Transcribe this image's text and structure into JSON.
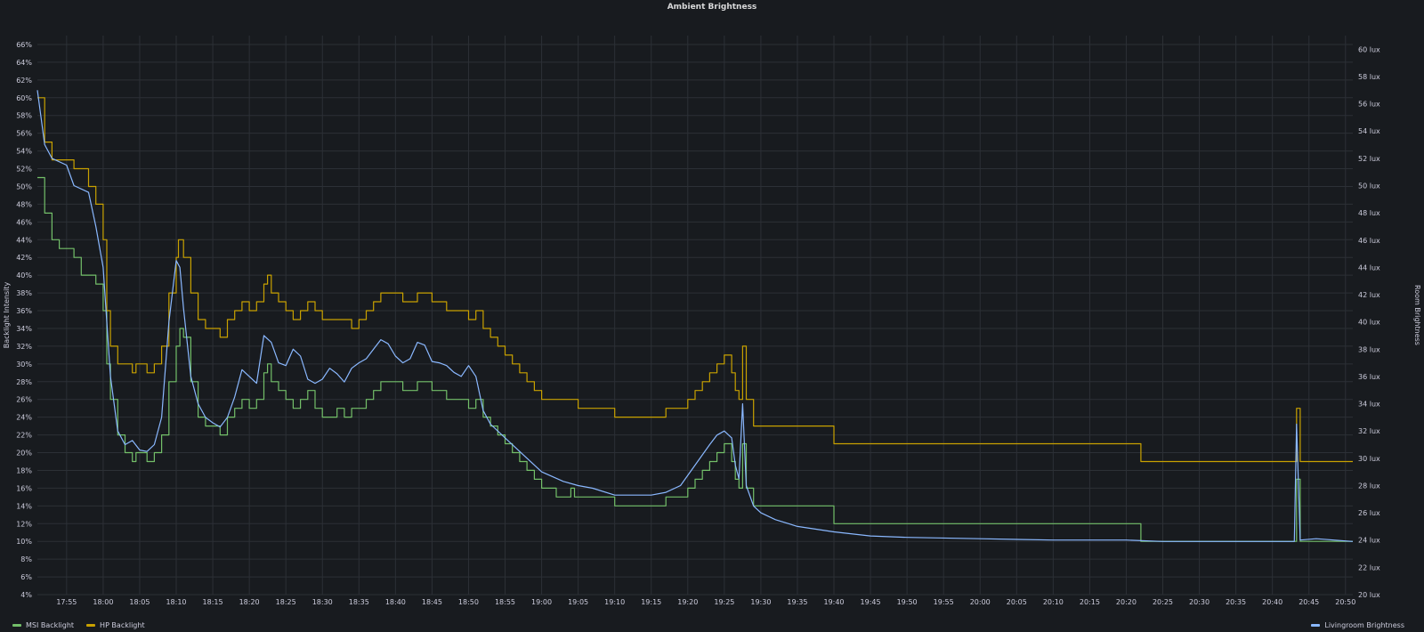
{
  "panel": {
    "title": "Ambient Brightness"
  },
  "legend": {
    "msi": "MSI Backlight",
    "hp": "HP Backlight",
    "room": "Livingroom Brightness"
  },
  "colors": {
    "background": "#181b1f",
    "grid": "#2c3036",
    "text": "#ccccdc",
    "msi": "#73bf69",
    "hp": "#c8a100",
    "room": "#8ab8ff"
  },
  "chart_data": {
    "type": "line",
    "title": "Ambient Brightness",
    "ylabel": "Backlight Intensity",
    "y2label": "Room Brightness",
    "xlim": [
      "17:51",
      "20:51"
    ],
    "ylim": [
      4,
      67
    ],
    "y2lim": [
      20,
      61
    ],
    "x_ticks": [
      "17:55",
      "18:00",
      "18:05",
      "18:10",
      "18:15",
      "18:20",
      "18:25",
      "18:30",
      "18:35",
      "18:40",
      "18:45",
      "18:50",
      "18:55",
      "19:00",
      "19:05",
      "19:10",
      "19:15",
      "19:20",
      "19:25",
      "19:30",
      "19:35",
      "19:40",
      "19:45",
      "19:50",
      "19:55",
      "20:00",
      "20:05",
      "20:10",
      "20:15",
      "20:20",
      "20:25",
      "20:30",
      "20:35",
      "20:40",
      "20:45",
      "20:50"
    ],
    "y_ticks": [
      "4%",
      "6%",
      "8%",
      "10%",
      "12%",
      "14%",
      "16%",
      "18%",
      "20%",
      "22%",
      "24%",
      "26%",
      "28%",
      "30%",
      "32%",
      "34%",
      "36%",
      "38%",
      "40%",
      "42%",
      "44%",
      "46%",
      "48%",
      "50%",
      "52%",
      "54%",
      "56%",
      "58%",
      "60%",
      "62%",
      "64%",
      "66%"
    ],
    "y2_ticks": [
      "20 lux",
      "22 lux",
      "24 lux",
      "26 lux",
      "28 lux",
      "30 lux",
      "32 lux",
      "34 lux",
      "36 lux",
      "38 lux",
      "40 lux",
      "42 lux",
      "44 lux",
      "46 lux",
      "48 lux",
      "50 lux",
      "52 lux",
      "54 lux",
      "56 lux",
      "58 lux",
      "60 lux"
    ],
    "grid": true,
    "legend_position": "bottom",
    "series": [
      {
        "name": "MSI Backlight",
        "axis": "left",
        "color": "#73bf69",
        "step": true,
        "points": [
          [
            "17:51",
            51
          ],
          [
            "17:52",
            47
          ],
          [
            "17:53",
            44
          ],
          [
            "17:54",
            43
          ],
          [
            "17:56",
            42
          ],
          [
            "17:57",
            40
          ],
          [
            "17:59",
            39
          ],
          [
            "18:00",
            36
          ],
          [
            "18:00.5",
            30
          ],
          [
            "18:01",
            26
          ],
          [
            "18:02",
            22
          ],
          [
            "18:03",
            20
          ],
          [
            "18:04",
            19
          ],
          [
            "18:04.5",
            20
          ],
          [
            "18:06",
            19
          ],
          [
            "18:07",
            20
          ],
          [
            "18:08",
            22
          ],
          [
            "18:09",
            28
          ],
          [
            "18:10",
            32
          ],
          [
            "18:10.5",
            34
          ],
          [
            "18:11",
            33
          ],
          [
            "18:12",
            28
          ],
          [
            "18:13",
            24
          ],
          [
            "18:14",
            23
          ],
          [
            "18:16",
            22
          ],
          [
            "18:17",
            24
          ],
          [
            "18:18",
            25
          ],
          [
            "18:19",
            26
          ],
          [
            "18:20",
            25
          ],
          [
            "18:21",
            26
          ],
          [
            "18:22",
            29
          ],
          [
            "18:22.5",
            30
          ],
          [
            "18:23",
            28
          ],
          [
            "18:24",
            27
          ],
          [
            "18:25",
            26
          ],
          [
            "18:26",
            25
          ],
          [
            "18:27",
            26
          ],
          [
            "18:28",
            27
          ],
          [
            "18:29",
            25
          ],
          [
            "18:30",
            24
          ],
          [
            "18:32",
            25
          ],
          [
            "18:33",
            24
          ],
          [
            "18:34",
            25
          ],
          [
            "18:36",
            26
          ],
          [
            "18:37",
            27
          ],
          [
            "18:38",
            28
          ],
          [
            "18:41",
            27
          ],
          [
            "18:43",
            28
          ],
          [
            "18:45",
            27
          ],
          [
            "18:47",
            26
          ],
          [
            "18:50",
            25
          ],
          [
            "18:51",
            26
          ],
          [
            "18:52",
            24
          ],
          [
            "18:53",
            23
          ],
          [
            "18:54",
            22
          ],
          [
            "18:55",
            21
          ],
          [
            "18:56",
            20
          ],
          [
            "18:57",
            19
          ],
          [
            "18:58",
            18
          ],
          [
            "18:59",
            17
          ],
          [
            "19:00",
            16
          ],
          [
            "19:02",
            15
          ],
          [
            "19:04",
            16
          ],
          [
            "19:04.5",
            15
          ],
          [
            "19:08",
            15
          ],
          [
            "19:10",
            14
          ],
          [
            "19:17",
            15
          ],
          [
            "19:20",
            16
          ],
          [
            "19:21",
            17
          ],
          [
            "19:22",
            18
          ],
          [
            "19:23",
            19
          ],
          [
            "19:24",
            20
          ],
          [
            "19:25",
            21
          ],
          [
            "19:26",
            19
          ],
          [
            "19:26.5",
            17
          ],
          [
            "19:27",
            16
          ],
          [
            "19:27.5",
            21
          ],
          [
            "19:28",
            16
          ],
          [
            "19:29",
            14
          ],
          [
            "19:40",
            12
          ],
          [
            "20:22",
            10
          ],
          [
            "20:43",
            10
          ],
          [
            "20:43.3",
            17
          ],
          [
            "20:43.8",
            10
          ],
          [
            "20:51",
            10
          ]
        ]
      },
      {
        "name": "HP Backlight",
        "axis": "left",
        "color": "#c8a100",
        "step": true,
        "points": [
          [
            "17:51",
            60
          ],
          [
            "17:52",
            55
          ],
          [
            "17:53",
            53
          ],
          [
            "17:56",
            52
          ],
          [
            "17:58",
            50
          ],
          [
            "17:59",
            48
          ],
          [
            "18:00",
            44
          ],
          [
            "18:00.5",
            36
          ],
          [
            "18:01",
            32
          ],
          [
            "18:02",
            30
          ],
          [
            "18:04",
            29
          ],
          [
            "18:04.5",
            30
          ],
          [
            "18:06",
            29
          ],
          [
            "18:07",
            30
          ],
          [
            "18:08",
            32
          ],
          [
            "18:09",
            38
          ],
          [
            "18:10",
            42
          ],
          [
            "18:10.3",
            44
          ],
          [
            "18:11",
            42
          ],
          [
            "18:12",
            38
          ],
          [
            "18:13",
            35
          ],
          [
            "18:14",
            34
          ],
          [
            "18:16",
            33
          ],
          [
            "18:17",
            35
          ],
          [
            "18:18",
            36
          ],
          [
            "18:19",
            37
          ],
          [
            "18:20",
            36
          ],
          [
            "18:21",
            37
          ],
          [
            "18:22",
            39
          ],
          [
            "18:22.5",
            40
          ],
          [
            "18:23",
            38
          ],
          [
            "18:24",
            37
          ],
          [
            "18:25",
            36
          ],
          [
            "18:26",
            35
          ],
          [
            "18:27",
            36
          ],
          [
            "18:28",
            37
          ],
          [
            "18:29",
            36
          ],
          [
            "18:30",
            35
          ],
          [
            "18:32",
            35
          ],
          [
            "18:34",
            34
          ],
          [
            "18:35",
            35
          ],
          [
            "18:36",
            36
          ],
          [
            "18:37",
            37
          ],
          [
            "18:38",
            38
          ],
          [
            "18:41",
            37
          ],
          [
            "18:43",
            38
          ],
          [
            "18:45",
            37
          ],
          [
            "18:47",
            36
          ],
          [
            "18:50",
            35
          ],
          [
            "18:51",
            36
          ],
          [
            "18:52",
            34
          ],
          [
            "18:53",
            33
          ],
          [
            "18:54",
            32
          ],
          [
            "18:55",
            31
          ],
          [
            "18:56",
            30
          ],
          [
            "18:57",
            29
          ],
          [
            "18:58",
            28
          ],
          [
            "18:59",
            27
          ],
          [
            "19:00",
            26
          ],
          [
            "19:04",
            26
          ],
          [
            "19:05",
            25
          ],
          [
            "19:10",
            24
          ],
          [
            "19:17",
            25
          ],
          [
            "19:20",
            26
          ],
          [
            "19:21",
            27
          ],
          [
            "19:22",
            28
          ],
          [
            "19:23",
            29
          ],
          [
            "19:24",
            30
          ],
          [
            "19:25",
            31
          ],
          [
            "19:26",
            29
          ],
          [
            "19:26.5",
            27
          ],
          [
            "19:27",
            26
          ],
          [
            "19:27.5",
            32
          ],
          [
            "19:28",
            26
          ],
          [
            "19:29",
            23
          ],
          [
            "19:40",
            21
          ],
          [
            "20:22",
            19
          ],
          [
            "20:43",
            19
          ],
          [
            "20:43.3",
            25
          ],
          [
            "20:43.8",
            19
          ],
          [
            "20:51",
            19
          ]
        ]
      },
      {
        "name": "Livingroom Brightness",
        "axis": "right",
        "color": "#8ab8ff",
        "step": false,
        "points": [
          [
            "17:51",
            57
          ],
          [
            "17:52",
            53
          ],
          [
            "17:53",
            52
          ],
          [
            "17:55",
            51.5
          ],
          [
            "17:56",
            50
          ],
          [
            "17:58",
            49.5
          ],
          [
            "17:59",
            47
          ],
          [
            "18:00",
            44
          ],
          [
            "18:01",
            36
          ],
          [
            "18:02",
            32
          ],
          [
            "18:03",
            31
          ],
          [
            "18:04",
            31.3
          ],
          [
            "18:05",
            30.6
          ],
          [
            "18:06",
            30.5
          ],
          [
            "18:07",
            31
          ],
          [
            "18:08",
            33
          ],
          [
            "18:09",
            40
          ],
          [
            "18:10",
            44.5
          ],
          [
            "18:10.5",
            44
          ],
          [
            "18:11",
            41
          ],
          [
            "18:12",
            36
          ],
          [
            "18:13",
            34
          ],
          [
            "18:14",
            33
          ],
          [
            "18:15",
            32.6
          ],
          [
            "18:16",
            32.3
          ],
          [
            "18:17",
            33
          ],
          [
            "18:18",
            34.5
          ],
          [
            "18:19",
            36.5
          ],
          [
            "18:20",
            36
          ],
          [
            "18:21",
            35.5
          ],
          [
            "18:22",
            39
          ],
          [
            "18:23",
            38.5
          ],
          [
            "18:24",
            37
          ],
          [
            "18:25",
            36.8
          ],
          [
            "18:26",
            38
          ],
          [
            "18:27",
            37.5
          ],
          [
            "18:28",
            35.8
          ],
          [
            "18:29",
            35.5
          ],
          [
            "18:30",
            35.8
          ],
          [
            "18:31",
            36.6
          ],
          [
            "18:32",
            36.2
          ],
          [
            "18:33",
            35.6
          ],
          [
            "18:34",
            36.6
          ],
          [
            "18:35",
            37
          ],
          [
            "18:36",
            37.3
          ],
          [
            "18:37",
            38
          ],
          [
            "18:38",
            38.7
          ],
          [
            "18:39",
            38.4
          ],
          [
            "18:40",
            37.5
          ],
          [
            "18:41",
            37
          ],
          [
            "18:42",
            37.3
          ],
          [
            "18:43",
            38.5
          ],
          [
            "18:44",
            38.3
          ],
          [
            "18:45",
            37.1
          ],
          [
            "18:46",
            37
          ],
          [
            "18:47",
            36.8
          ],
          [
            "18:48",
            36.3
          ],
          [
            "18:49",
            36
          ],
          [
            "18:50",
            36.8
          ],
          [
            "18:51",
            36
          ],
          [
            "18:52",
            33.5
          ],
          [
            "18:53",
            32.5
          ],
          [
            "18:55",
            31.5
          ],
          [
            "18:57",
            30.5
          ],
          [
            "19:00",
            29
          ],
          [
            "19:03",
            28.3
          ],
          [
            "19:05",
            28
          ],
          [
            "19:07",
            27.8
          ],
          [
            "19:10",
            27.3
          ],
          [
            "19:15",
            27.3
          ],
          [
            "19:17",
            27.5
          ],
          [
            "19:19",
            28
          ],
          [
            "19:21",
            29.5
          ],
          [
            "19:23",
            31
          ],
          [
            "19:24",
            31.7
          ],
          [
            "19:25",
            32
          ],
          [
            "19:26",
            31.5
          ],
          [
            "19:26.5",
            29.5
          ],
          [
            "19:27",
            28.5
          ],
          [
            "19:27.5",
            34
          ],
          [
            "19:28",
            28
          ],
          [
            "19:29",
            26.5
          ],
          [
            "19:30",
            26
          ],
          [
            "19:32",
            25.5
          ],
          [
            "19:35",
            25
          ],
          [
            "19:40",
            24.6
          ],
          [
            "19:45",
            24.3
          ],
          [
            "19:50",
            24.2
          ],
          [
            "20:00",
            24.1
          ],
          [
            "20:10",
            24.0
          ],
          [
            "20:20",
            24.0
          ],
          [
            "20:25",
            23.9
          ],
          [
            "20:40",
            23.9
          ],
          [
            "20:43",
            23.9
          ],
          [
            "20:43.3",
            32.5
          ],
          [
            "20:43.8",
            24
          ],
          [
            "20:46",
            24.1
          ],
          [
            "20:51",
            23.9
          ]
        ]
      }
    ]
  }
}
